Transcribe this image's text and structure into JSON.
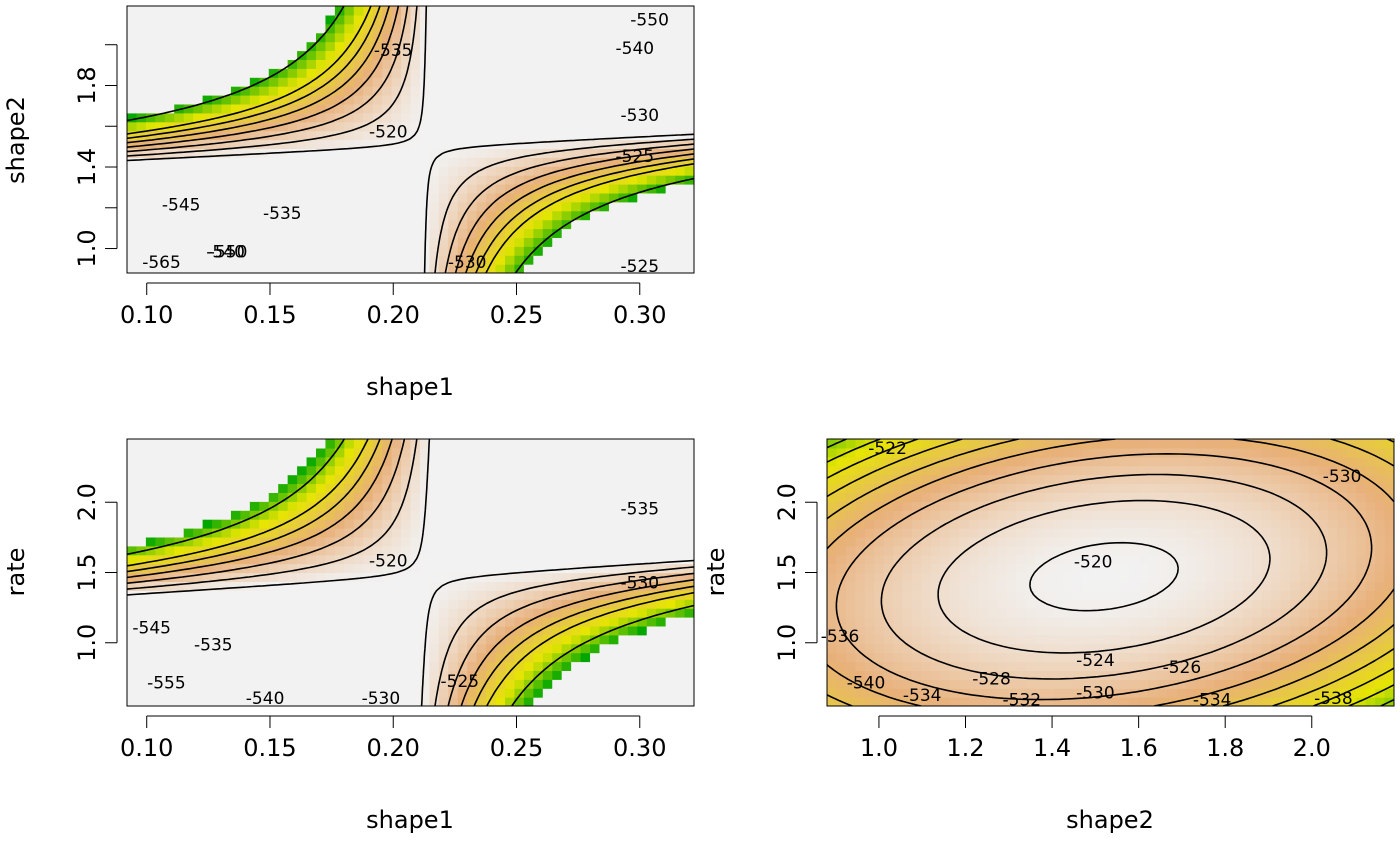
{
  "colors": {
    "low": "#00a600",
    "mid_low": "#e6e600",
    "mid": "#e8b07a",
    "high": "#f2f2f2",
    "contour": "#000000"
  },
  "chart_data": [
    {
      "id": "panel-shape1-shape2",
      "type": "heatmap",
      "subtype": "log-likelihood contour",
      "xlabel": "shape1",
      "ylabel": "shape2",
      "xlim": [
        0.092,
        0.322
      ],
      "ylim": [
        0.88,
        2.19
      ],
      "x_ticks": [
        "0.10",
        "0.15",
        "0.20",
        "0.25",
        "0.30"
      ],
      "y_ticks": [
        "1.0",
        "1.4",
        "1.8"
      ],
      "y_minor_ticks": [
        1.0,
        1.2,
        1.4,
        1.6,
        1.8,
        2.0
      ],
      "field": {
        "max": -519.5,
        "center": [
          0.213,
          1.5
        ],
        "floor": -568
      },
      "contour_labels": [
        {
          "text": "-520",
          "x": 0.198,
          "y": 1.57
        },
        {
          "text": "-525",
          "x": 0.3,
          "y": 0.91
        },
        {
          "text": "-525",
          "x": 0.298,
          "y": 1.45
        },
        {
          "text": "-530",
          "x": 0.23,
          "y": 0.93
        },
        {
          "text": "-530",
          "x": 0.3,
          "y": 1.65
        },
        {
          "text": "-535",
          "x": 0.155,
          "y": 1.17
        },
        {
          "text": "-535",
          "x": 0.2,
          "y": 1.97
        },
        {
          "text": "-540",
          "x": 0.132,
          "y": 0.98
        },
        {
          "text": "-540",
          "x": 0.298,
          "y": 1.98
        },
        {
          "text": "-545",
          "x": 0.114,
          "y": 1.21
        },
        {
          "text": "-550",
          "x": 0.133,
          "y": 0.98
        },
        {
          "text": "-550",
          "x": 0.304,
          "y": 2.12
        },
        {
          "text": "-565",
          "x": 0.106,
          "y": 0.93
        }
      ]
    },
    {
      "id": "panel-shape1-rate",
      "type": "heatmap",
      "subtype": "log-likelihood contour",
      "xlabel": "shape1",
      "ylabel": "rate",
      "xlim": [
        0.092,
        0.322
      ],
      "ylim": [
        0.55,
        2.45
      ],
      "x_ticks": [
        "0.10",
        "0.15",
        "0.20",
        "0.25",
        "0.30"
      ],
      "y_ticks": [
        "1.0",
        "1.5",
        "2.0"
      ],
      "y_minor_ticks": [
        1.0,
        1.5,
        2.0
      ],
      "field": {
        "max": -519.5,
        "center": [
          0.213,
          1.47
        ],
        "floor": -562
      },
      "contour_labels": [
        {
          "text": "-520",
          "x": 0.198,
          "y": 1.58
        },
        {
          "text": "-525",
          "x": 0.227,
          "y": 0.72
        },
        {
          "text": "-530",
          "x": 0.195,
          "y": 0.6
        },
        {
          "text": "-530",
          "x": 0.3,
          "y": 1.42
        },
        {
          "text": "-535",
          "x": 0.127,
          "y": 0.98
        },
        {
          "text": "-535",
          "x": 0.3,
          "y": 1.95
        },
        {
          "text": "-540",
          "x": 0.148,
          "y": 0.6
        },
        {
          "text": "-545",
          "x": 0.102,
          "y": 1.1
        },
        {
          "text": "-555",
          "x": 0.108,
          "y": 0.71
        }
      ]
    },
    {
      "id": "panel-shape2-rate",
      "type": "heatmap",
      "subtype": "log-likelihood contour",
      "xlabel": "shape2",
      "ylabel": "rate",
      "xlim": [
        0.88,
        2.19
      ],
      "ylim": [
        0.55,
        2.45
      ],
      "x_ticks": [
        "1.0",
        "1.2",
        "1.4",
        "1.6",
        "1.8",
        "2.0"
      ],
      "y_ticks": [
        "1.0",
        "1.5",
        "2.0"
      ],
      "y_minor_ticks": [
        1.0,
        1.5,
        2.0
      ],
      "field": {
        "max": -519.5,
        "center": [
          1.52,
          1.47
        ],
        "floor": -542
      },
      "contour_labels": [
        {
          "text": "-520",
          "x": 1.495,
          "y": 1.57
        },
        {
          "text": "-522",
          "x": 1.02,
          "y": 2.38
        },
        {
          "text": "-524",
          "x": 1.5,
          "y": 0.87
        },
        {
          "text": "-526",
          "x": 1.7,
          "y": 0.82
        },
        {
          "text": "-528",
          "x": 1.26,
          "y": 0.74
        },
        {
          "text": "-530",
          "x": 1.5,
          "y": 0.64
        },
        {
          "text": "-530",
          "x": 2.07,
          "y": 2.18
        },
        {
          "text": "-532",
          "x": 1.33,
          "y": 0.59
        },
        {
          "text": "-534",
          "x": 1.1,
          "y": 0.62
        },
        {
          "text": "-534",
          "x": 1.77,
          "y": 0.59
        },
        {
          "text": "-536",
          "x": 0.91,
          "y": 1.04
        },
        {
          "text": "-538",
          "x": 2.05,
          "y": 0.6
        },
        {
          "text": "-540",
          "x": 0.97,
          "y": 0.71
        }
      ]
    }
  ]
}
